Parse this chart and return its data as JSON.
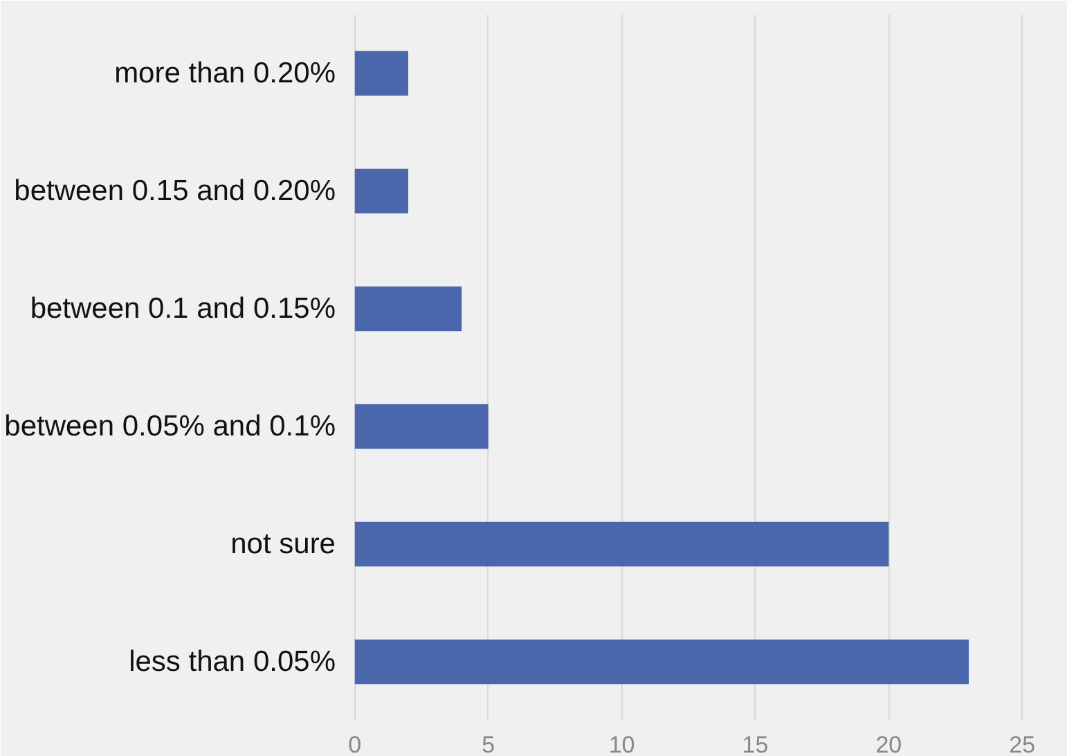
{
  "chart_data": {
    "type": "bar",
    "orientation": "horizontal",
    "categories": [
      "more than 0.20%",
      "between 0.15 and 0.20%",
      "between 0.1 and 0.15%",
      "between 0.05% and 0.1%",
      "not sure",
      "less than 0.05%"
    ],
    "values": [
      2,
      2,
      4,
      5,
      20,
      23
    ],
    "color": "#4a66ac",
    "xlim": [
      0,
      25
    ],
    "xticks": [
      0,
      5,
      10,
      15,
      20,
      25
    ],
    "grid": "x"
  }
}
